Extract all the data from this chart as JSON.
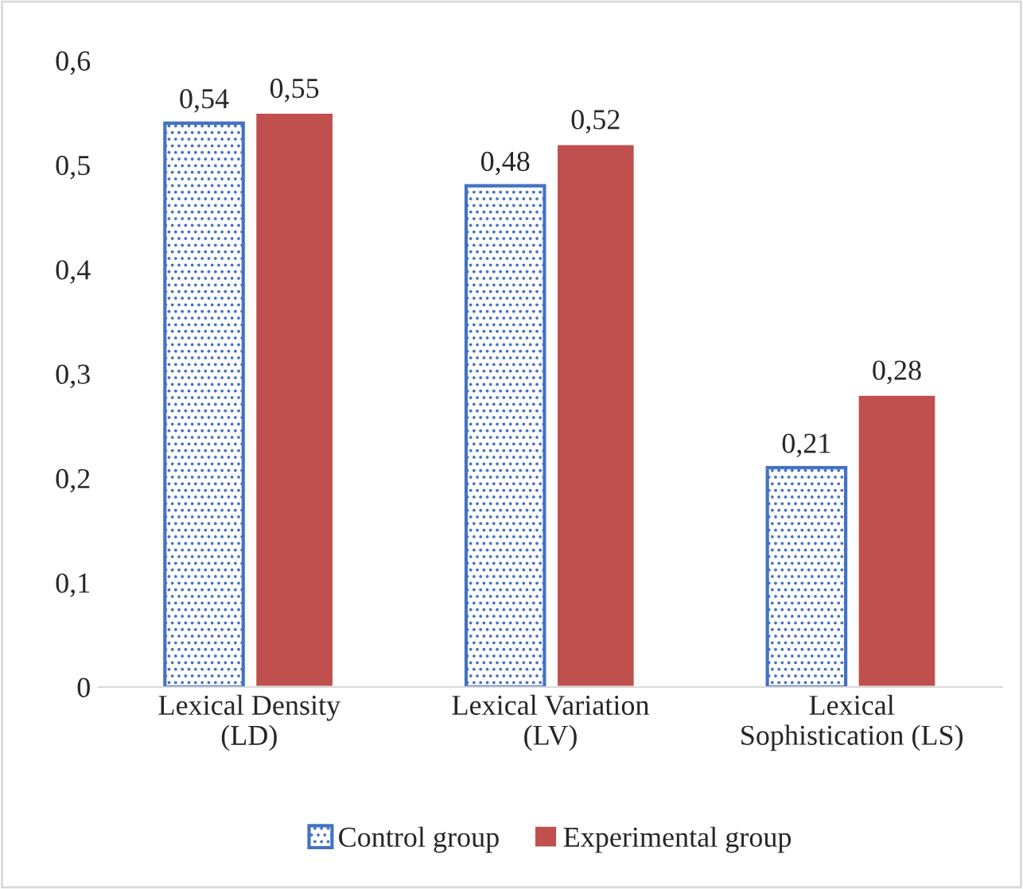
{
  "chart_data": {
    "type": "bar",
    "categories": [
      "Lexical Density\n(LD)",
      "Lexical Variation\n(LV)",
      "Lexical\nSophistication (LS)"
    ],
    "series": [
      {
        "name": "Control group",
        "color": "#4472c4",
        "values": [
          0.54,
          0.48,
          0.21
        ],
        "value_labels": [
          "0,54",
          "0,48",
          "0,21"
        ]
      },
      {
        "name": "Experimental group",
        "color": "#c0504d",
        "values": [
          0.55,
          0.52,
          0.28
        ],
        "value_labels": [
          "0,55",
          "0,52",
          "0,28"
        ]
      }
    ],
    "ylim": [
      0,
      0.6
    ],
    "yticks": [
      {
        "value": 0,
        "label": "0"
      },
      {
        "value": 0.1,
        "label": "0,1"
      },
      {
        "value": 0.2,
        "label": "0,2"
      },
      {
        "value": 0.3,
        "label": "0,3"
      },
      {
        "value": 0.4,
        "label": "0,4"
      },
      {
        "value": 0.5,
        "label": "0,5"
      },
      {
        "value": 0.6,
        "label": "0,6"
      }
    ],
    "legend": "bottom"
  }
}
